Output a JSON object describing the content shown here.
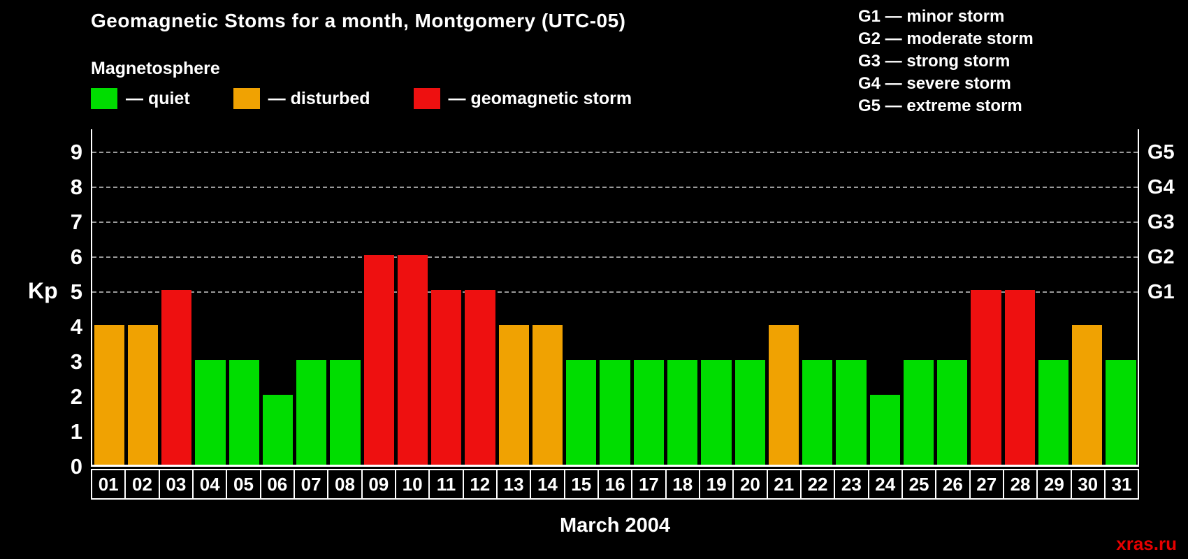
{
  "header": {
    "title": "Geomagnetic Stoms for a month, Montgomery (UTC-05)",
    "subtitle": "Magnetosphere"
  },
  "legend": {
    "quiet": "— quiet",
    "disturbed": "— disturbed",
    "storm": "— geomagnetic storm"
  },
  "g_legend": [
    "G1 — minor storm",
    "G2 — moderate storm",
    "G3 — strong storm",
    "G4 — severe storm",
    "G5 — extreme storm"
  ],
  "axis": {
    "kp_label": "Kp",
    "left_ticks": [
      9,
      8,
      7,
      6,
      5,
      4,
      3,
      2,
      1,
      0
    ],
    "right_ticks": [
      {
        "label": "G5",
        "value": 9
      },
      {
        "label": "G4",
        "value": 8
      },
      {
        "label": "G3",
        "value": 7
      },
      {
        "label": "G2",
        "value": 6
      },
      {
        "label": "G1",
        "value": 5
      }
    ]
  },
  "footer": {
    "xlabel": "March 2004",
    "watermark": "xras.ru"
  },
  "colors": {
    "quiet": "#00dd00",
    "disturbed": "#f0a202",
    "storm": "#ee1010",
    "watermark": "#e60000",
    "grid": "#999999",
    "axis": "#ffffff"
  },
  "chart_data": {
    "type": "bar",
    "title": "Geomagnetic Stoms for a month, Montgomery (UTC-05)",
    "xlabel": "March 2004",
    "ylabel": "Kp",
    "ylim": [
      0,
      9
    ],
    "grid": "dashed horizontal lines at Kp 5,6,7,8,9 (G1–G5)",
    "legend_position": "top",
    "categories": [
      "01",
      "02",
      "03",
      "04",
      "05",
      "06",
      "07",
      "08",
      "09",
      "10",
      "11",
      "12",
      "13",
      "14",
      "15",
      "16",
      "17",
      "18",
      "19",
      "20",
      "21",
      "22",
      "23",
      "24",
      "25",
      "26",
      "27",
      "28",
      "29",
      "30",
      "31"
    ],
    "values": [
      4,
      4,
      5,
      3,
      3,
      2,
      3,
      3,
      6,
      6,
      5,
      5,
      4,
      4,
      3,
      3,
      3,
      3,
      3,
      3,
      4,
      3,
      3,
      2,
      3,
      3,
      5,
      5,
      3,
      4,
      3
    ],
    "color_rule": {
      "quiet_max": 3,
      "disturbed_value": 4,
      "storm_min": 5
    }
  }
}
